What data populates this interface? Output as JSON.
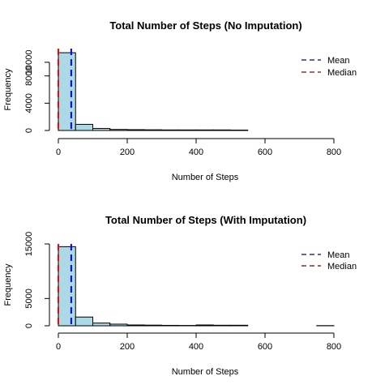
{
  "colors": {
    "bar_fill": "#add8e6",
    "bar_stroke": "#000000",
    "mean_line": "#0000ff",
    "median_line": "#ff0000",
    "legend_mean": "#00008b",
    "legend_median": "#8b0000"
  },
  "chart_data": [
    {
      "type": "bar",
      "title": "Total Number of Steps (No Imputation)",
      "xlabel": "Number of Steps",
      "ylabel": "Frequency",
      "xlim": [
        -10,
        850
      ],
      "ylim": [
        0,
        12000
      ],
      "x_ticks": [
        0,
        200,
        400,
        600,
        800
      ],
      "x_tick_labels": [
        "0",
        "200",
        "400",
        "600",
        "800"
      ],
      "y_ticks": [
        0,
        4000,
        8000,
        10000
      ],
      "y_tick_labels": [
        "0",
        "4000",
        "8000",
        "10000"
      ],
      "bin_width": 50,
      "bins": [
        {
          "x0": 0,
          "x1": 50,
          "count": 11400
        },
        {
          "x0": 50,
          "x1": 100,
          "count": 900
        },
        {
          "x0": 100,
          "x1": 150,
          "count": 300
        },
        {
          "x0": 150,
          "x1": 200,
          "count": 150
        },
        {
          "x0": 200,
          "x1": 250,
          "count": 120
        },
        {
          "x0": 250,
          "x1": 300,
          "count": 100
        },
        {
          "x0": 300,
          "x1": 350,
          "count": 80
        },
        {
          "x0": 350,
          "x1": 400,
          "count": 80
        },
        {
          "x0": 400,
          "x1": 450,
          "count": 80
        },
        {
          "x0": 450,
          "x1": 500,
          "count": 80
        },
        {
          "x0": 500,
          "x1": 550,
          "count": 60
        },
        {
          "x0": 550,
          "x1": 600,
          "count": 0
        },
        {
          "x0": 600,
          "x1": 650,
          "count": 0
        },
        {
          "x0": 650,
          "x1": 700,
          "count": 0
        },
        {
          "x0": 700,
          "x1": 750,
          "count": 0
        },
        {
          "x0": 750,
          "x1": 800,
          "count": 0
        }
      ],
      "mean": 37.4,
      "median": 0,
      "legend": {
        "position": "top-right",
        "entries": [
          "Mean",
          "Median"
        ]
      },
      "grid": false
    },
    {
      "type": "bar",
      "title": "Total Number of Steps (With Imputation)",
      "xlabel": "Number of Steps",
      "ylabel": "Frequency",
      "xlim": [
        -10,
        850
      ],
      "ylim": [
        0,
        15000
      ],
      "x_ticks": [
        0,
        200,
        400,
        600,
        800
      ],
      "x_tick_labels": [
        "0",
        "200",
        "400",
        "600",
        "800"
      ],
      "y_ticks": [
        0,
        5000,
        15000
      ],
      "y_tick_labels": [
        "0",
        "5000",
        "15000"
      ],
      "bin_width": 50,
      "bins": [
        {
          "x0": 0,
          "x1": 50,
          "count": 14500
        },
        {
          "x0": 50,
          "x1": 100,
          "count": 1600
        },
        {
          "x0": 100,
          "x1": 150,
          "count": 500
        },
        {
          "x0": 150,
          "x1": 200,
          "count": 300
        },
        {
          "x0": 200,
          "x1": 250,
          "count": 150
        },
        {
          "x0": 250,
          "x1": 300,
          "count": 120
        },
        {
          "x0": 300,
          "x1": 350,
          "count": 80
        },
        {
          "x0": 350,
          "x1": 400,
          "count": 60
        },
        {
          "x0": 400,
          "x1": 450,
          "count": 150
        },
        {
          "x0": 450,
          "x1": 500,
          "count": 100
        },
        {
          "x0": 500,
          "x1": 550,
          "count": 100
        },
        {
          "x0": 550,
          "x1": 600,
          "count": 0
        },
        {
          "x0": 600,
          "x1": 650,
          "count": 0
        },
        {
          "x0": 650,
          "x1": 700,
          "count": 0
        },
        {
          "x0": 700,
          "x1": 750,
          "count": 0
        },
        {
          "x0": 750,
          "x1": 800,
          "count": 30
        }
      ],
      "mean": 37.4,
      "median": 0,
      "legend": {
        "position": "top-right",
        "entries": [
          "Mean",
          "Median"
        ]
      },
      "grid": false
    }
  ]
}
